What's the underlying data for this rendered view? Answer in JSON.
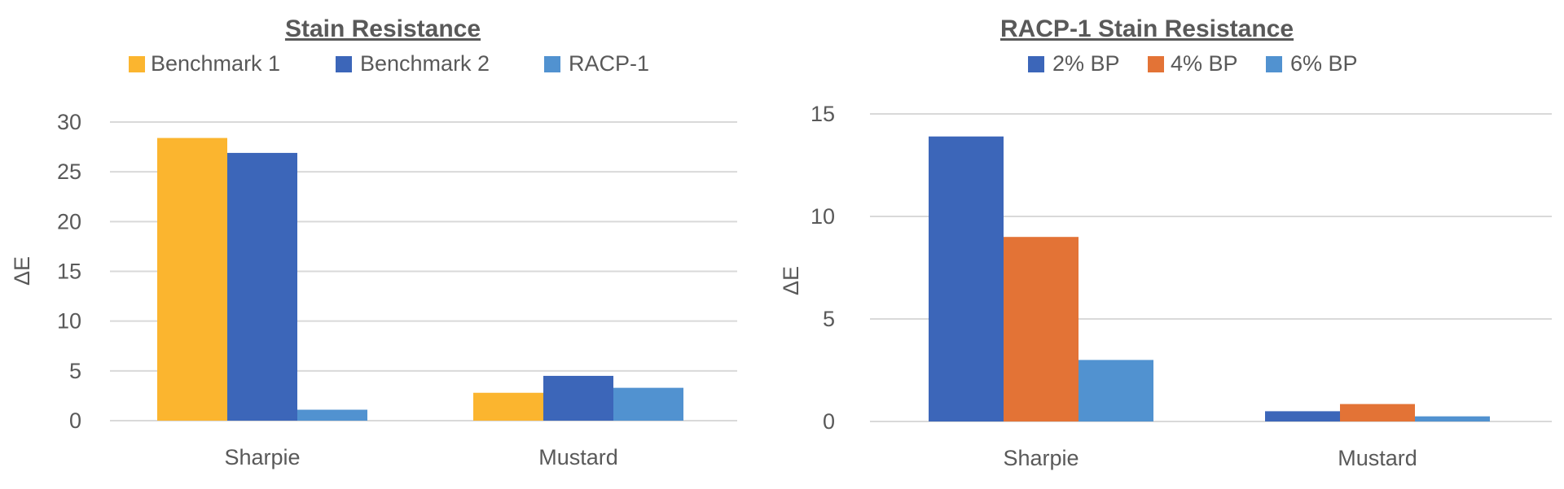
{
  "chart_data": [
    {
      "type": "bar",
      "title": "Stain Resistance",
      "ylabel": "ΔE",
      "xlabel": "",
      "categories": [
        "Sharpie",
        "Mustard"
      ],
      "ylim": [
        0,
        30
      ],
      "yticks": [
        0,
        5,
        10,
        15,
        20,
        25,
        30
      ],
      "grid": true,
      "legend": "top",
      "series": [
        {
          "name": "Benchmark 1",
          "color": "#FBB52F",
          "values": [
            28.4,
            2.8
          ]
        },
        {
          "name": "Benchmark 2",
          "color": "#3C66B9",
          "values": [
            26.9,
            4.5
          ]
        },
        {
          "name": "RACP-1",
          "color": "#5192D0",
          "values": [
            1.1,
            3.3
          ]
        }
      ]
    },
    {
      "type": "bar",
      "title": "RACP-1 Stain Resistance",
      "ylabel": "ΔE",
      "xlabel": "",
      "categories": [
        "Sharpie",
        "Mustard"
      ],
      "ylim": [
        0,
        15
      ],
      "yticks": [
        0,
        5,
        10,
        15
      ],
      "grid": true,
      "legend": "top",
      "series": [
        {
          "name": "2% BP",
          "color": "#3C66B9",
          "values": [
            13.9,
            0.5
          ]
        },
        {
          "name": "4% BP",
          "color": "#E37336",
          "values": [
            9.0,
            0.85
          ]
        },
        {
          "name": "6% BP",
          "color": "#5192D0",
          "values": [
            3.0,
            0.25
          ]
        }
      ]
    }
  ]
}
